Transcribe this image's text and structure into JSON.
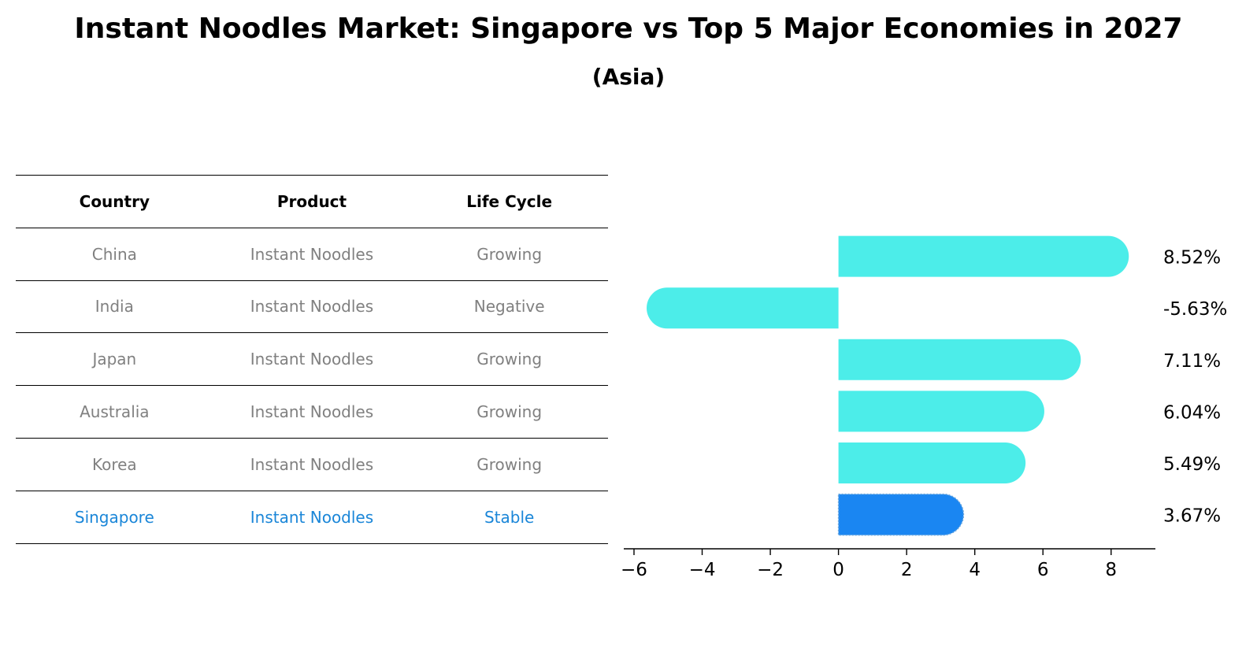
{
  "title": "Instant Noodles Market: Singapore vs Top 5 Major Economies in 2027",
  "subtitle": "(Asia)",
  "table": {
    "headers": [
      "Country",
      "Product",
      "Life Cycle"
    ],
    "rows": [
      [
        "China",
        "Instant Noodles",
        "Growing"
      ],
      [
        "India",
        "Instant Noodles",
        "Negative"
      ],
      [
        "Japan",
        "Instant Noodles",
        "Growing"
      ],
      [
        "Australia",
        "Instant Noodles",
        "Growing"
      ],
      [
        "Korea",
        "Instant Noodles",
        "Growing"
      ],
      [
        "Singapore",
        "Instant Noodles",
        "Stable"
      ]
    ],
    "highlight_row": 5
  },
  "colors": {
    "bar": "#4cede9",
    "highlight_bar": "#1a86f2",
    "text_muted": "#808080",
    "text_highlight": "#1a86d8"
  },
  "chart_data": {
    "type": "bar",
    "orientation": "horizontal",
    "categories": [
      "China",
      "India",
      "Japan",
      "Australia",
      "Korea",
      "Singapore"
    ],
    "values": [
      8.52,
      -5.63,
      7.11,
      6.04,
      5.49,
      3.67
    ],
    "value_labels": [
      "8.52%",
      "-5.63%",
      "7.11%",
      "6.04%",
      "5.49%",
      "3.67%"
    ],
    "highlight_index": 5,
    "xlim": [
      -6.3,
      9.3
    ],
    "xticks": [
      -6,
      -4,
      -2,
      0,
      2,
      4,
      6,
      8
    ],
    "xtick_labels": [
      "−6",
      "−4",
      "−2",
      "0",
      "2",
      "4",
      "6",
      "8"
    ],
    "grid": false
  }
}
